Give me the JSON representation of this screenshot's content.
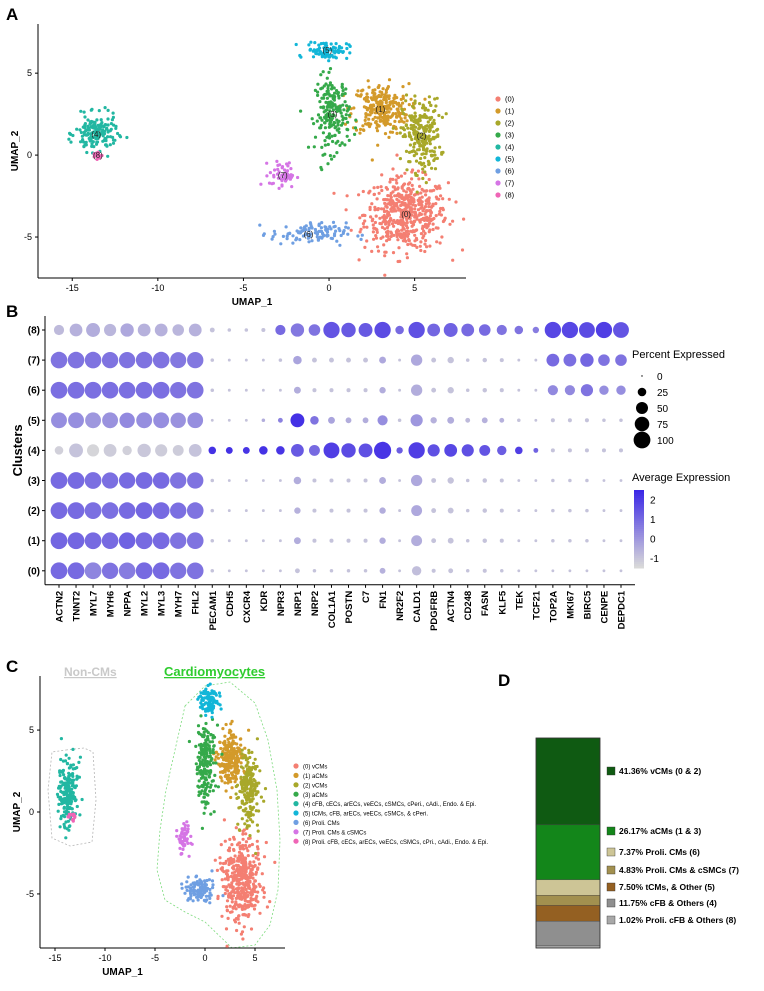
{
  "colors": {
    "c0": "#f47f72",
    "c1": "#d39a2a",
    "c2": "#a8a82a",
    "c3": "#35a94a",
    "c4": "#22b7a2",
    "c5": "#12b6d8",
    "c6": "#6f9fe2",
    "c7": "#d575e5",
    "c8": "#ef65b6"
  },
  "chart_data": [
    {
      "panel": "A",
      "type": "scatter",
      "xlabel": "UMAP_1",
      "ylabel": "UMAP_2",
      "xticks": [
        "-15",
        "-10",
        "-5",
        "0",
        "5"
      ],
      "yticks": [
        "5",
        "0",
        "-5"
      ],
      "xlim": [
        -17,
        8
      ],
      "ylim": [
        -7.5,
        8
      ],
      "legend_position": "right",
      "legend": [
        "(0)",
        "(1)",
        "(2)",
        "(3)",
        "(4)",
        "(5)",
        "(6)",
        "(7)",
        "(8)"
      ],
      "cluster_labels": [
        "(0)",
        "(1)",
        "(2)",
        "(3)",
        "(4)",
        "(5)",
        "(6)",
        "(7)",
        "(8)"
      ],
      "clusters": [
        {
          "id": 0,
          "color": "c0",
          "center": [
            4.5,
            -3.6
          ],
          "spread": [
            2.2,
            2.0
          ],
          "n": 520
        },
        {
          "id": 1,
          "color": "c1",
          "center": [
            3.0,
            2.8
          ],
          "spread": [
            1.5,
            1.4
          ],
          "n": 260
        },
        {
          "id": 2,
          "color": "c2",
          "center": [
            5.4,
            1.2
          ],
          "spread": [
            1.0,
            2.0
          ],
          "n": 240
        },
        {
          "id": 3,
          "color": "c3",
          "center": [
            0.2,
            2.5
          ],
          "spread": [
            0.9,
            2.1
          ],
          "n": 200
        },
        {
          "id": 4,
          "color": "c4",
          "center": [
            -13.6,
            1.3
          ],
          "spread": [
            1.1,
            1.0
          ],
          "n": 170
        },
        {
          "id": 5,
          "color": "c5",
          "center": [
            -0.1,
            6.4
          ],
          "spread": [
            1.1,
            0.5
          ],
          "n": 90
        },
        {
          "id": 6,
          "color": "c6",
          "center": [
            -1.2,
            -4.8
          ],
          "spread": [
            2.0,
            0.6
          ],
          "n": 110
        },
        {
          "id": 7,
          "color": "c7",
          "center": [
            -2.7,
            -1.2
          ],
          "spread": [
            0.7,
            0.7
          ],
          "n": 55
        },
        {
          "id": 8,
          "color": "c8",
          "center": [
            -13.5,
            0.0
          ],
          "spread": [
            0.25,
            0.2
          ],
          "n": 15
        }
      ]
    },
    {
      "panel": "B",
      "type": "scatter",
      "subtype": "dotplot",
      "ylabel": "Clusters",
      "clusters": [
        "(0)",
        "(1)",
        "(2)",
        "(3)",
        "(4)",
        "(5)",
        "(6)",
        "(7)",
        "(8)"
      ],
      "genes": [
        "ACTN2",
        "TNNT2",
        "MYL7",
        "MYH6",
        "NPPA",
        "MYL2",
        "MYL3",
        "MYH7",
        "FHL2",
        "PECAM1",
        "CDH5",
        "CXCR4",
        "KDR",
        "NPR3",
        "NRP1",
        "NRP2",
        "COL1A1",
        "POSTN",
        "C7",
        "FN1",
        "NR2F2",
        "CALD1",
        "PDGFRB",
        "ACTN4",
        "CD248",
        "FASN",
        "KLF5",
        "TEK",
        "TCF21",
        "TOP2A",
        "MKI67",
        "BIRC5",
        "CENPE",
        "DEPDC1"
      ],
      "size_legend_title": "Percent Expressed",
      "size_legend_values": [
        0,
        25,
        50,
        75,
        100
      ],
      "color_legend_title": "Average Expression",
      "color_legend_ticks": [
        2,
        1,
        0,
        -1
      ],
      "color_range": [
        -1.5,
        2.5
      ],
      "percent_expressed": [
        [
          90,
          90,
          90,
          85,
          88,
          90,
          90,
          85,
          88,
          2,
          1,
          1,
          1,
          1,
          5,
          2,
          2,
          2,
          2,
          8,
          1,
          25,
          3,
          5,
          2,
          3,
          2,
          1,
          1,
          1,
          1,
          1,
          1,
          1
        ],
        [
          90,
          90,
          90,
          88,
          88,
          90,
          90,
          85,
          88,
          2,
          1,
          1,
          1,
          1,
          12,
          3,
          3,
          3,
          3,
          10,
          1,
          35,
          5,
          8,
          2,
          4,
          3,
          1,
          1,
          2,
          2,
          2,
          1,
          1
        ],
        [
          90,
          90,
          90,
          88,
          88,
          90,
          90,
          85,
          88,
          2,
          1,
          1,
          1,
          1,
          10,
          3,
          3,
          3,
          3,
          10,
          1,
          35,
          5,
          8,
          2,
          4,
          3,
          1,
          1,
          2,
          2,
          2,
          1,
          1
        ],
        [
          90,
          90,
          90,
          85,
          85,
          90,
          88,
          85,
          85,
          2,
          1,
          1,
          1,
          1,
          15,
          3,
          3,
          3,
          3,
          12,
          1,
          38,
          5,
          10,
          2,
          4,
          3,
          1,
          1,
          2,
          2,
          2,
          1,
          1
        ],
        [
          20,
          60,
          45,
          50,
          25,
          55,
          45,
          35,
          50,
          15,
          12,
          12,
          20,
          20,
          50,
          35,
          80,
          65,
          60,
          95,
          10,
          85,
          45,
          50,
          45,
          35,
          25,
          15,
          5,
          3,
          3,
          3,
          3,
          3
        ],
        [
          80,
          80,
          80,
          80,
          75,
          80,
          80,
          75,
          78,
          1,
          1,
          1,
          2,
          5,
          60,
          20,
          12,
          8,
          8,
          30,
          2,
          45,
          10,
          12,
          5,
          8,
          5,
          2,
          1,
          3,
          3,
          3,
          2,
          2
        ],
        [
          90,
          90,
          90,
          88,
          88,
          90,
          90,
          85,
          88,
          2,
          1,
          1,
          1,
          1,
          12,
          3,
          3,
          3,
          3,
          10,
          1,
          38,
          5,
          10,
          2,
          4,
          3,
          1,
          1,
          30,
          30,
          45,
          25,
          25
        ],
        [
          88,
          88,
          88,
          85,
          85,
          88,
          88,
          82,
          85,
          2,
          1,
          1,
          1,
          2,
          20,
          5,
          5,
          5,
          5,
          12,
          1,
          38,
          5,
          10,
          2,
          4,
          3,
          1,
          1,
          50,
          50,
          55,
          40,
          40
        ],
        [
          30,
          50,
          60,
          45,
          55,
          50,
          50,
          40,
          50,
          5,
          2,
          2,
          3,
          30,
          55,
          40,
          85,
          65,
          60,
          85,
          20,
          85,
          50,
          60,
          50,
          40,
          30,
          20,
          10,
          85,
          85,
          80,
          85,
          80
        ]
      ],
      "average_expression": [
        [
          1.0,
          1.0,
          0.4,
          0.8,
          0.6,
          1.0,
          1.0,
          0.8,
          0.8,
          -1,
          -1,
          -1,
          -1,
          -1,
          -1,
          -1,
          -1,
          -1,
          -1,
          -0.6,
          -1,
          -0.9,
          -1,
          -1,
          -1,
          -1,
          -1,
          -1,
          -1,
          -1,
          -1,
          -1,
          -1,
          -1
        ],
        [
          1.1,
          1.1,
          1.0,
          1.0,
          1.2,
          1.0,
          1.0,
          0.8,
          0.8,
          -1,
          -1,
          -1,
          -1,
          -1,
          -0.5,
          -1,
          -1,
          -1,
          -1,
          -0.5,
          -1,
          -0.5,
          -1,
          -1,
          -1,
          -1,
          -1,
          -1,
          -1,
          -1,
          -1,
          -1,
          -1,
          -1
        ],
        [
          1.0,
          1.0,
          0.9,
          0.9,
          1.0,
          1.1,
          1.0,
          0.9,
          0.8,
          -1,
          -1,
          -1,
          -1,
          -1,
          -0.6,
          -1,
          -1,
          -1,
          -1,
          -0.5,
          -1,
          -0.4,
          -1,
          -1,
          -1,
          -1,
          -1,
          -1,
          -1,
          -1,
          -1,
          -1,
          -1,
          -1
        ],
        [
          1.0,
          1.0,
          0.9,
          0.9,
          1.0,
          1.0,
          1.0,
          0.8,
          0.8,
          -1,
          -1,
          -1,
          -1,
          -1,
          -0.5,
          -1,
          -1,
          -1,
          -1,
          -0.5,
          -1,
          -0.4,
          -1,
          -1,
          -1,
          -1,
          -1,
          -1,
          -1,
          -1,
          -1,
          -1,
          -1,
          -1
        ],
        [
          -1.3,
          -1.0,
          -1.4,
          -1.2,
          -1.3,
          -1.1,
          -1.2,
          -1.2,
          -1.0,
          2.3,
          2.3,
          2.2,
          2.3,
          2.2,
          1.4,
          1.0,
          2.0,
          1.7,
          1.6,
          2.2,
          1.3,
          2.0,
          1.6,
          1.8,
          1.6,
          1.5,
          1.3,
          2.0,
          1.2,
          -1,
          -1,
          -1,
          -1,
          -1
        ],
        [
          0.2,
          0.2,
          0.0,
          0.1,
          0.3,
          0.2,
          0.2,
          0.1,
          0.2,
          -1,
          -1,
          -1,
          -0.5,
          0.5,
          2.3,
          0.8,
          -0.3,
          -0.5,
          -0.5,
          0.2,
          -1,
          0.0,
          -0.6,
          -0.5,
          -0.8,
          -0.6,
          -0.6,
          -1,
          -1,
          -1,
          -1,
          -1,
          -1,
          -1
        ],
        [
          0.9,
          0.9,
          0.9,
          0.9,
          0.9,
          0.9,
          0.9,
          0.8,
          0.8,
          -1,
          -1,
          -1,
          -1,
          -1,
          -0.5,
          -1,
          -1,
          -1,
          -1,
          -0.5,
          -1,
          -0.5,
          -1,
          -1,
          -1,
          -1,
          -1,
          -1,
          -1,
          0.3,
          0.3,
          0.8,
          0.2,
          0.2
        ],
        [
          0.8,
          0.8,
          0.8,
          0.8,
          0.8,
          0.8,
          0.8,
          0.7,
          0.7,
          -1,
          -1,
          -1,
          -1,
          -1,
          -0.3,
          -1,
          -1,
          -1,
          -1,
          -0.4,
          -1,
          -0.4,
          -1,
          -1,
          -1,
          -1,
          -1,
          -1,
          -1,
          1.0,
          0.9,
          1.1,
          0.8,
          0.8
        ],
        [
          -0.8,
          -0.6,
          -0.5,
          -0.7,
          -0.4,
          -0.6,
          -0.6,
          -0.7,
          -0.6,
          -1,
          -1,
          -1,
          -1,
          1.0,
          0.7,
          0.8,
          1.5,
          1.4,
          1.4,
          1.7,
          1.0,
          1.6,
          1.1,
          1.2,
          1.0,
          1.0,
          0.8,
          0.8,
          0.6,
          1.8,
          1.8,
          1.7,
          2.0,
          1.5
        ]
      ]
    },
    {
      "panel": "C",
      "type": "scatter",
      "xlabel": "UMAP_1",
      "ylabel": "UMAP_2",
      "xticks": [
        "-15",
        "-10",
        "-5",
        "0",
        "5"
      ],
      "yticks": [
        "5",
        "0",
        "-5"
      ],
      "xlim": [
        -16.5,
        8
      ],
      "ylim": [
        -8.3,
        8.3
      ],
      "group_labels": [
        "Non-CMs",
        "Cardiomyocytes"
      ],
      "legend_position": "right",
      "legend": [
        "(0) vCMs",
        "(1) aCMs",
        "(2) vCMs",
        "(3) aCMs",
        "(4) cFB, cECs, arECs, veECs, cSMCs, cPeri., cAdi., Endo. & Epi.",
        "(5) tCMs, cFB, arECs, veECs, cSMCs, & cPeri.",
        "(6) Proli. CMs",
        "(7) Proli. CMs & cSMCs",
        "(8) Proli. cFB, cECs, arECs, veECs, cSMCs, cPri., cAdi., Endo. & Epi."
      ],
      "clusters": [
        {
          "id": 0,
          "color": "c0",
          "center": [
            3.7,
            -4.2
          ],
          "spread": [
            1.8,
            2.2
          ],
          "n": 440
        },
        {
          "id": 1,
          "color": "c1",
          "center": [
            2.5,
            3.2
          ],
          "spread": [
            1.2,
            1.6
          ],
          "n": 230
        },
        {
          "id": 2,
          "color": "c2",
          "center": [
            4.4,
            1.5
          ],
          "spread": [
            0.9,
            2.0
          ],
          "n": 210
        },
        {
          "id": 3,
          "color": "c3",
          "center": [
            0.0,
            2.8
          ],
          "spread": [
            0.9,
            2.3
          ],
          "n": 190
        },
        {
          "id": 4,
          "color": "c4",
          "center": [
            -13.7,
            1.2
          ],
          "spread": [
            0.9,
            1.9
          ],
          "n": 180
        },
        {
          "id": 5,
          "color": "c5",
          "center": [
            0.4,
            6.8
          ],
          "spread": [
            0.8,
            0.7
          ],
          "n": 90
        },
        {
          "id": 6,
          "color": "c6",
          "center": [
            -0.6,
            -4.7
          ],
          "spread": [
            1.7,
            0.8
          ],
          "n": 110
        },
        {
          "id": 7,
          "color": "c7",
          "center": [
            -2.1,
            -1.6
          ],
          "spread": [
            0.5,
            1.0
          ],
          "n": 55
        },
        {
          "id": 8,
          "color": "c8",
          "center": [
            -13.3,
            -0.3
          ],
          "spread": [
            0.3,
            0.3
          ],
          "n": 15
        }
      ]
    },
    {
      "panel": "D",
      "type": "bar",
      "subtype": "stacked",
      "categories": [
        "41.36%  vCMs (0 & 2)",
        "26.17%  aCMs (1 & 3)",
        "7.37%  Proli. CMs (6)",
        "4.83%  Proli. CMs & cSMCs (7)",
        "7.50%  tCMs, & Other (5)",
        "11.75%  cFB & Others (4)",
        "1.02%  Proli. cFB & Others (8)"
      ],
      "values": [
        41.36,
        26.17,
        7.37,
        4.83,
        7.5,
        11.75,
        1.02
      ],
      "colors": [
        "#0f5a12",
        "#13861a",
        "#cdc596",
        "#a2904f",
        "#946022",
        "#8f8f8f",
        "#a8a8a8"
      ]
    }
  ],
  "panels": {
    "a": {
      "letter": "A"
    },
    "b": {
      "letter": "B"
    },
    "c": {
      "letter": "C",
      "noncms": "Non-CMs",
      "cms": "Cardiomyocytes"
    },
    "d": {
      "letter": "D"
    }
  }
}
